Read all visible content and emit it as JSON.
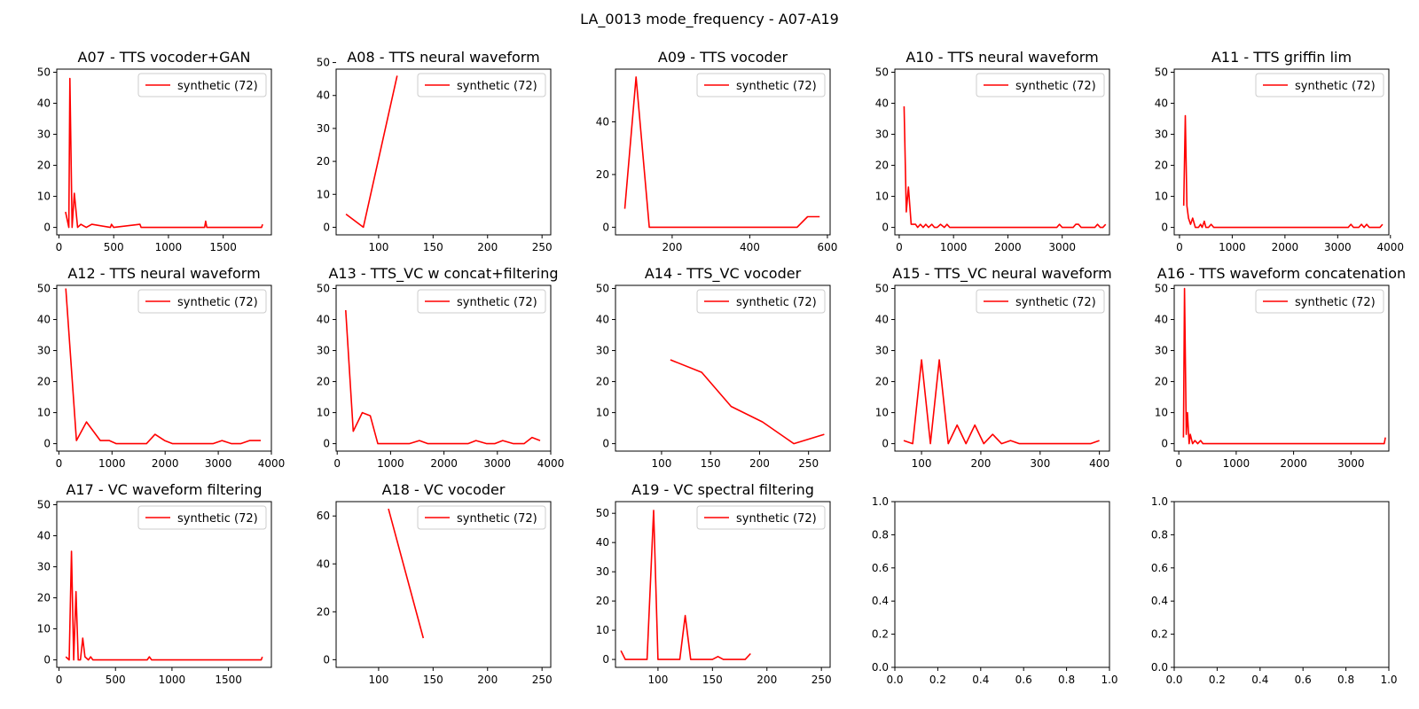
{
  "figure": {
    "suptitle": "LA_0013 mode_frequency - A07-A19",
    "line_color": "#ff0000",
    "legend_label": "synthetic (72)",
    "legend_loc": "upper right",
    "grid": false
  },
  "chart_data": [
    {
      "type": "line",
      "title": "A07 - TTS vocoder+GAN",
      "xlim": [
        -20,
        1940
      ],
      "ylim": [
        -2.4,
        51
      ],
      "xticks": [
        0,
        500,
        1000,
        1500
      ],
      "yticks": [
        0,
        10,
        20,
        30,
        40,
        50
      ],
      "series": [
        {
          "name": "synthetic (72)",
          "x": [
            60,
            90,
            100,
            120,
            140,
            170,
            200,
            250,
            300,
            470,
            480,
            500,
            740,
            750,
            760,
            1330,
            1340,
            1350,
            1850,
            1860
          ],
          "y": [
            5,
            0,
            48,
            0,
            11,
            0,
            1,
            0,
            1,
            0,
            1,
            0,
            1,
            0,
            0,
            0,
            2,
            0,
            0,
            1
          ]
        }
      ]
    },
    {
      "type": "line",
      "title": "A08 - TTS neural waveform",
      "xlim": [
        61,
        258
      ],
      "ylim": [
        -2.3,
        48
      ],
      "xticks": [
        100,
        150,
        200,
        250
      ],
      "yticks": [
        0,
        10,
        20,
        30,
        40,
        50
      ],
      "series": [
        {
          "name": "synthetic (72)",
          "x": [
            70,
            86,
            117
          ],
          "y": [
            4,
            0,
            46
          ]
        }
      ]
    },
    {
      "type": "line",
      "title": "A09 - TTS vocoder",
      "xlim": [
        54,
        607
      ],
      "ylim": [
        -2.9,
        60
      ],
      "xticks": [
        200,
        400,
        600
      ],
      "yticks": [
        0,
        20,
        40
      ],
      "series": [
        {
          "name": "synthetic (72)",
          "x": [
            78,
            107,
            141,
            522,
            549,
            580
          ],
          "y": [
            7,
            57,
            0,
            0,
            4,
            4
          ]
        }
      ]
    },
    {
      "type": "line",
      "title": "A10 - TTS neural waveform",
      "xlim": [
        -80,
        3870
      ],
      "ylim": [
        -2.4,
        51
      ],
      "xticks": [
        0,
        1000,
        2000,
        3000
      ],
      "yticks": [
        0,
        10,
        20,
        30,
        40,
        50
      ],
      "series": [
        {
          "name": "synthetic (72)",
          "x": [
            90,
            130,
            170,
            220,
            300,
            340,
            390,
            440,
            490,
            540,
            600,
            650,
            700,
            760,
            830,
            880,
            930,
            1000,
            2900,
            2950,
            3000,
            3200,
            3250,
            3300,
            3350,
            3400,
            3600,
            3650,
            3700,
            3750,
            3800
          ],
          "y": [
            39,
            5,
            13,
            1,
            1,
            0,
            1,
            0,
            1,
            0,
            1,
            0,
            0,
            1,
            0,
            1,
            0,
            0,
            0,
            1,
            0,
            0,
            1,
            1,
            0,
            0,
            0,
            1,
            0,
            0,
            1
          ]
        }
      ]
    },
    {
      "type": "line",
      "title": "A11 - TTS griffin lim",
      "xlim": [
        -100,
        3970
      ],
      "ylim": [
        -2.4,
        51
      ],
      "xticks": [
        0,
        1000,
        2000,
        3000,
        4000
      ],
      "yticks": [
        0,
        10,
        20,
        30,
        40,
        50
      ],
      "series": [
        {
          "name": "synthetic (72)",
          "x": [
            80,
            110,
            140,
            170,
            210,
            250,
            300,
            360,
            400,
            430,
            470,
            500,
            550,
            600,
            650,
            3200,
            3250,
            3300,
            3400,
            3450,
            3500,
            3550,
            3600,
            3800,
            3850
          ],
          "y": [
            7,
            36,
            7,
            3,
            1,
            3,
            0,
            0,
            1,
            0,
            2,
            0,
            0,
            1,
            0,
            0,
            1,
            0,
            0,
            1,
            0,
            1,
            0,
            0,
            1
          ]
        }
      ]
    },
    {
      "type": "line",
      "title": "A12 - TTS neural waveform",
      "xlim": [
        -40,
        4000
      ],
      "ylim": [
        -2.4,
        51
      ],
      "xticks": [
        0,
        1000,
        2000,
        3000,
        4000
      ],
      "yticks": [
        0,
        10,
        20,
        30,
        40,
        50
      ],
      "series": [
        {
          "name": "synthetic (72)",
          "x": [
            130,
            330,
            520,
            780,
            950,
            1080,
            1650,
            1810,
            1990,
            2140,
            2900,
            3070,
            3250,
            3420,
            3590,
            3800
          ],
          "y": [
            50,
            1,
            7,
            1,
            1,
            0,
            0,
            3,
            1,
            0,
            0,
            1,
            0,
            0,
            1,
            1
          ]
        }
      ]
    },
    {
      "type": "line",
      "title": "A13 - TTS_VC w concat+filtering",
      "xlim": [
        -20,
        4000
      ],
      "ylim": [
        -2.4,
        51
      ],
      "xticks": [
        0,
        1000,
        2000,
        3000,
        4000
      ],
      "yticks": [
        0,
        10,
        20,
        30,
        40,
        50
      ],
      "series": [
        {
          "name": "synthetic (72)",
          "x": [
            160,
            300,
            470,
            620,
            760,
            1000,
            1350,
            1540,
            1700,
            2000,
            2450,
            2600,
            2800,
            2950,
            3100,
            3300,
            3500,
            3650,
            3800
          ],
          "y": [
            43,
            4,
            10,
            9,
            0,
            0,
            0,
            1,
            0,
            0,
            0,
            1,
            0,
            0,
            1,
            0,
            0,
            2,
            1
          ]
        }
      ]
    },
    {
      "type": "line",
      "title": "A14 - TTS_VC vocoder",
      "xlim": [
        53,
        272
      ],
      "ylim": [
        -2.4,
        51
      ],
      "xticks": [
        100,
        150,
        200,
        250
      ],
      "yticks": [
        0,
        10,
        20,
        30,
        40,
        50
      ],
      "series": [
        {
          "name": "synthetic (72)",
          "x": [
            109,
            141,
            171,
            203,
            235,
            266
          ],
          "y": [
            27,
            23,
            12,
            7,
            0,
            3
          ]
        }
      ]
    },
    {
      "type": "line",
      "title": "A15 - TTS_VC neural waveform",
      "xlim": [
        55,
        417
      ],
      "ylim": [
        -2.4,
        51
      ],
      "xticks": [
        100,
        200,
        300,
        400
      ],
      "yticks": [
        0,
        10,
        20,
        30,
        40,
        50
      ],
      "series": [
        {
          "name": "synthetic (72)",
          "x": [
            70,
            85,
            100,
            115,
            130,
            145,
            160,
            175,
            190,
            205,
            220,
            235,
            250,
            265,
            385,
            400
          ],
          "y": [
            1,
            0,
            27,
            0,
            27,
            0,
            6,
            0,
            6,
            0,
            3,
            0,
            1,
            0,
            0,
            1
          ]
        }
      ]
    },
    {
      "type": "line",
      "title": "A16 - TTS waveform concatenation",
      "xlim": [
        -80,
        3660
      ],
      "ylim": [
        -2.4,
        51
      ],
      "xticks": [
        0,
        1000,
        2000,
        3000
      ],
      "yticks": [
        0,
        10,
        20,
        30,
        40,
        50
      ],
      "series": [
        {
          "name": "synthetic (72)",
          "x": [
            80,
            100,
            130,
            150,
            180,
            200,
            240,
            280,
            330,
            380,
            420,
            450,
            3580,
            3600
          ],
          "y": [
            2,
            50,
            3,
            10,
            0,
            3,
            0,
            1,
            0,
            1,
            0,
            0,
            0,
            2
          ]
        }
      ]
    },
    {
      "type": "line",
      "title": "A17 - VC waveform filtering",
      "xlim": [
        -20,
        1880
      ],
      "ylim": [
        -2.4,
        51
      ],
      "xticks": [
        0,
        500,
        1000,
        1500
      ],
      "yticks": [
        0,
        10,
        20,
        30,
        40,
        50
      ],
      "series": [
        {
          "name": "synthetic (72)",
          "x": [
            60,
            90,
            110,
            130,
            150,
            170,
            190,
            210,
            230,
            260,
            280,
            300,
            780,
            800,
            820,
            1790,
            1800
          ],
          "y": [
            1,
            0,
            35,
            0,
            22,
            0,
            0,
            7,
            1,
            0,
            1,
            0,
            0,
            1,
            0,
            0,
            1
          ]
        }
      ]
    },
    {
      "type": "line",
      "title": "A18 - VC vocoder",
      "xlim": [
        61,
        258
      ],
      "ylim": [
        -3.2,
        66
      ],
      "xticks": [
        100,
        150,
        200,
        250
      ],
      "yticks": [
        0,
        20,
        40,
        60
      ],
      "series": [
        {
          "name": "synthetic (72)",
          "x": [
            109,
            141
          ],
          "y": [
            63,
            9
          ]
        }
      ]
    },
    {
      "type": "line",
      "title": "A19 - VC spectral filtering",
      "xlim": [
        61,
        258
      ],
      "ylim": [
        -2.7,
        54
      ],
      "xticks": [
        100,
        150,
        200,
        250
      ],
      "yticks": [
        0,
        10,
        20,
        30,
        40,
        50
      ],
      "series": [
        {
          "name": "synthetic (72)",
          "x": [
            66,
            70,
            80,
            90,
            96,
            100,
            110,
            115,
            120,
            125,
            130,
            140,
            150,
            155,
            160,
            170,
            180,
            185
          ],
          "y": [
            3,
            0,
            0,
            0,
            51,
            0,
            0,
            0,
            0,
            15,
            0,
            0,
            0,
            1,
            0,
            0,
            0,
            2
          ]
        }
      ]
    },
    {
      "type": "line",
      "title": "",
      "xlim": [
        0,
        1
      ],
      "ylim": [
        0,
        1
      ],
      "xticks": [
        0,
        0.2,
        0.4,
        0.6,
        0.8,
        1.0
      ],
      "yticks": [
        0,
        0.2,
        0.4,
        0.6,
        0.8,
        1.0
      ],
      "tick_labels": [
        "0.0",
        "0.2",
        "0.4",
        "0.6",
        "0.8",
        "1.0"
      ],
      "series": []
    },
    {
      "type": "line",
      "title": "",
      "xlim": [
        0,
        1
      ],
      "ylim": [
        0,
        1
      ],
      "xticks": [
        0,
        0.2,
        0.4,
        0.6,
        0.8,
        1.0
      ],
      "yticks": [
        0,
        0.2,
        0.4,
        0.6,
        0.8,
        1.0
      ],
      "tick_labels": [
        "0.0",
        "0.2",
        "0.4",
        "0.6",
        "0.8",
        "1.0"
      ],
      "series": []
    }
  ]
}
